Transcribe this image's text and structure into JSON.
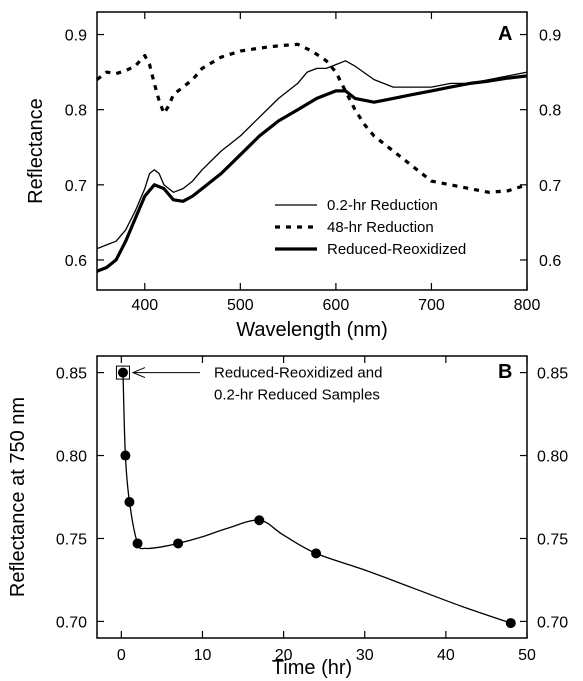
{
  "chart_data": [
    {
      "panel": "A",
      "type": "line",
      "xlabel": "Wavelength  (nm)",
      "ylabel": "Reflectance",
      "xlim": [
        350,
        800
      ],
      "ylim": [
        0.56,
        0.93
      ],
      "xticks": [
        400,
        500,
        600,
        700,
        800
      ],
      "yticks": [
        0.6,
        0.7,
        0.8,
        0.9
      ],
      "ytick_labels": [
        "0.6",
        "0.7",
        "0.8",
        "0.9"
      ],
      "right_axis_labels": true,
      "legend_position": "bottom-right",
      "series": [
        {
          "name": "0.2-hr Reduction",
          "style": "thin-solid",
          "x": [
            350,
            360,
            370,
            380,
            390,
            400,
            405,
            410,
            415,
            420,
            430,
            440,
            450,
            460,
            480,
            500,
            520,
            540,
            560,
            570,
            580,
            590,
            600,
            610,
            620,
            640,
            660,
            680,
            700,
            720,
            740,
            760,
            780,
            800
          ],
          "y": [
            0.615,
            0.62,
            0.625,
            0.64,
            0.665,
            0.695,
            0.715,
            0.72,
            0.715,
            0.7,
            0.69,
            0.695,
            0.705,
            0.72,
            0.745,
            0.765,
            0.79,
            0.815,
            0.835,
            0.85,
            0.855,
            0.855,
            0.86,
            0.865,
            0.858,
            0.84,
            0.83,
            0.83,
            0.83,
            0.835,
            0.835,
            0.84,
            0.845,
            0.85
          ]
        },
        {
          "name": "48-hr Reduction",
          "style": "dashed",
          "x": [
            350,
            360,
            370,
            380,
            390,
            400,
            405,
            410,
            415,
            420,
            425,
            430,
            440,
            450,
            460,
            480,
            500,
            520,
            540,
            560,
            575,
            590,
            600,
            610,
            620,
            630,
            640,
            660,
            680,
            700,
            720,
            740,
            760,
            780,
            800
          ],
          "y": [
            0.84,
            0.85,
            0.848,
            0.852,
            0.858,
            0.872,
            0.86,
            0.835,
            0.812,
            0.795,
            0.805,
            0.82,
            0.83,
            0.84,
            0.855,
            0.87,
            0.878,
            0.882,
            0.885,
            0.887,
            0.878,
            0.865,
            0.85,
            0.825,
            0.8,
            0.78,
            0.765,
            0.745,
            0.725,
            0.705,
            0.7,
            0.695,
            0.69,
            0.692,
            0.7
          ]
        },
        {
          "name": "Reduced-Reoxidized",
          "style": "thick-solid",
          "x": [
            350,
            360,
            370,
            380,
            390,
            400,
            410,
            420,
            430,
            440,
            450,
            460,
            480,
            500,
            520,
            540,
            560,
            580,
            600,
            610,
            620,
            640,
            660,
            680,
            700,
            720,
            740,
            760,
            780,
            800
          ],
          "y": [
            0.585,
            0.59,
            0.6,
            0.625,
            0.655,
            0.685,
            0.7,
            0.695,
            0.68,
            0.678,
            0.685,
            0.695,
            0.715,
            0.74,
            0.765,
            0.785,
            0.8,
            0.815,
            0.825,
            0.825,
            0.815,
            0.81,
            0.815,
            0.82,
            0.825,
            0.83,
            0.835,
            0.838,
            0.842,
            0.845
          ]
        }
      ],
      "legend": [
        "0.2-hr Reduction",
        "48-hr Reduction",
        "Reduced-Reoxidized"
      ]
    },
    {
      "panel": "B",
      "type": "scatter",
      "xlabel": "Time (hr)",
      "ylabel": "Reflectance at 750 nm",
      "xlim": [
        -3,
        50
      ],
      "ylim": [
        0.69,
        0.86
      ],
      "xticks": [
        0,
        10,
        20,
        30,
        40,
        50
      ],
      "yticks": [
        0.7,
        0.75,
        0.8,
        0.85
      ],
      "ytick_labels": [
        "0.70",
        "0.75",
        "0.80",
        "0.85"
      ],
      "right_axis_labels": true,
      "points": {
        "x": [
          0.2,
          0.5,
          1,
          2,
          7,
          17,
          24,
          48
        ],
        "y": [
          0.85,
          0.8,
          0.772,
          0.747,
          0.747,
          0.761,
          0.741,
          0.699
        ]
      },
      "smooth_curve": {
        "x": [
          0.2,
          0.5,
          1,
          2,
          3,
          5,
          7,
          10,
          13,
          17,
          20,
          24,
          30,
          36,
          42,
          48
        ],
        "y": [
          0.85,
          0.8,
          0.772,
          0.747,
          0.744,
          0.745,
          0.747,
          0.751,
          0.756,
          0.761,
          0.752,
          0.741,
          0.731,
          0.72,
          0.709,
          0.699
        ]
      },
      "open_square": {
        "x": 0.2,
        "y": 0.85
      },
      "annotation": {
        "line1": "Reduced-Reoxidized and",
        "line2": "0.2-hr Reduced Samples",
        "points_to": {
          "x": 0.2,
          "y": 0.85
        }
      }
    }
  ]
}
